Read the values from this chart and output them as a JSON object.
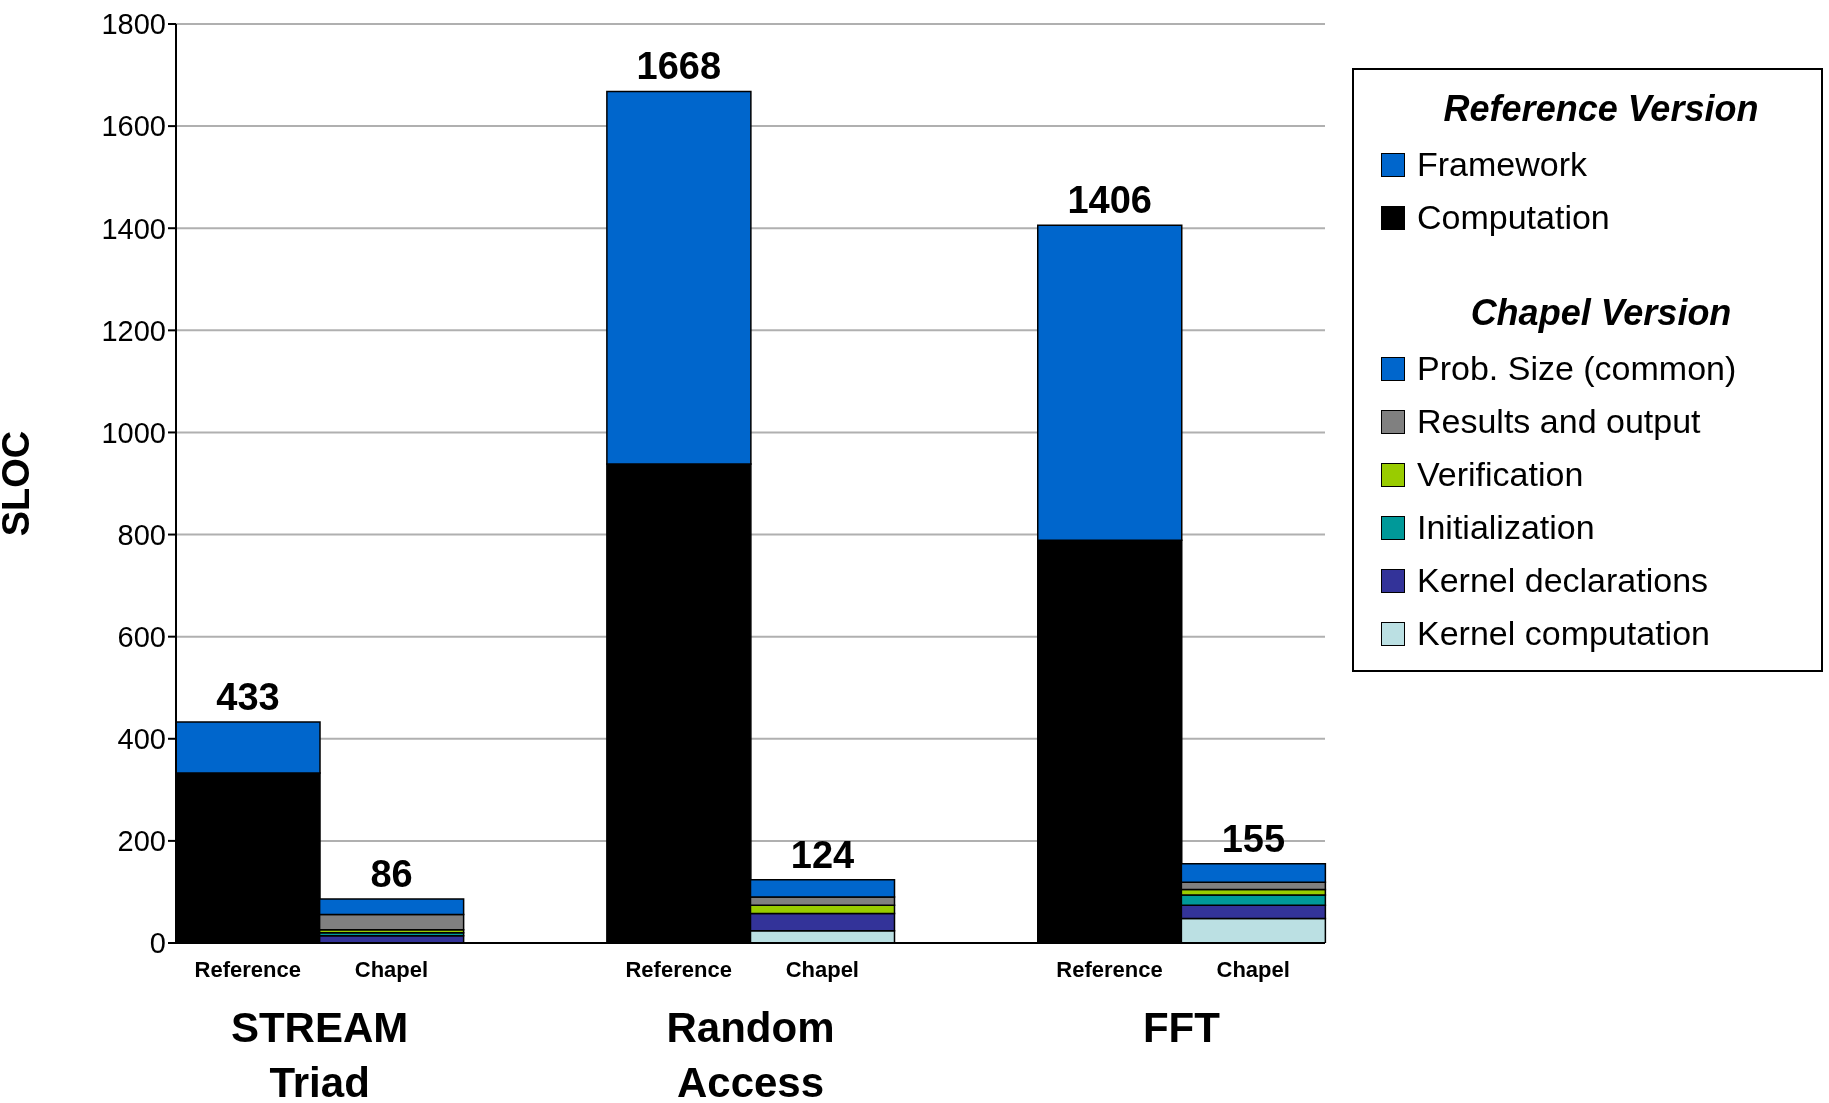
{
  "chart_data": {
    "type": "bar",
    "stacked": true,
    "ylabel": "SLOC",
    "ylim": [
      0,
      1800
    ],
    "yticks": [
      0,
      200,
      400,
      600,
      800,
      1000,
      1200,
      1400,
      1600,
      1800
    ],
    "grid": "y",
    "legend": "right",
    "legend_title": "Reference Version",
    "categories": [
      "Reference",
      "Chapel",
      null,
      "Reference",
      "Chapel",
      null,
      "Reference",
      "Chapel"
    ],
    "series": [
      {
        "name": "Computation",
        "color": "#000000",
        "values": [
          333,
          null,
          null,
          938,
          null,
          null,
          789,
          null
        ]
      },
      {
        "name": "Framework",
        "color": "#0066cc",
        "values": [
          100,
          null,
          null,
          730,
          null,
          null,
          617,
          null
        ]
      },
      {
        "name": "Kernel computation",
        "color": "#bbe0e3",
        "values": [
          null,
          null,
          null,
          null,
          24,
          null,
          null,
          48
        ]
      },
      {
        "name": "Kernel declarations",
        "color": "#333399",
        "values": [
          null,
          14,
          null,
          null,
          34,
          null,
          null,
          26
        ]
      },
      {
        "name": "Initialization",
        "color": "#009999",
        "values": [
          null,
          6,
          null,
          null,
          0,
          null,
          null,
          20
        ]
      },
      {
        "name": "Verification",
        "color": "#99cc00",
        "values": [
          null,
          6,
          null,
          null,
          16,
          null,
          null,
          11
        ]
      },
      {
        "name": "Results and output",
        "color": "#808080",
        "values": [
          null,
          30,
          null,
          null,
          16,
          null,
          null,
          14
        ]
      },
      {
        "name": "Prob. Size (common)",
        "color": "#0066cc",
        "values": [
          null,
          30,
          null,
          null,
          34,
          null,
          null,
          36
        ]
      }
    ],
    "totals": [
      "433",
      "86",
      null,
      "1668",
      "124",
      null,
      "1406",
      "155"
    ],
    "annotations": [
      "STREAM Triad",
      "Random Access",
      "FFT",
      "Chapel Version"
    ]
  }
}
